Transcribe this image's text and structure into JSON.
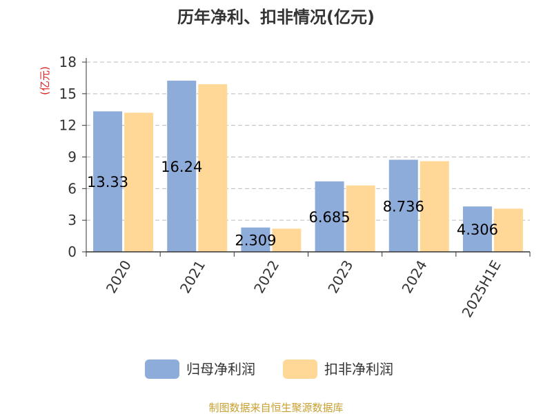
{
  "chart_data": {
    "type": "bar",
    "title": "历年净利、扣非情况(亿元)",
    "ylabel": "(亿元)",
    "xlabel": "",
    "categories": [
      "2020",
      "2021",
      "2022",
      "2023",
      "2024",
      "2025H1E"
    ],
    "series": [
      {
        "name": "归母净利润",
        "values": [
          13.33,
          16.24,
          2.309,
          6.685,
          8.736,
          4.306
        ],
        "color": "#8eacda"
      },
      {
        "name": "扣非净利润",
        "values": [
          13.2,
          15.9,
          2.2,
          6.3,
          8.6,
          4.1
        ],
        "color": "#ffd897"
      }
    ],
    "data_labels": [
      "13.33",
      "16.24",
      "2.309",
      "6.685",
      "8.736",
      "4.306"
    ],
    "ylim": [
      0,
      18
    ],
    "yticks": [
      0,
      3,
      6,
      9,
      12,
      15,
      18
    ],
    "grid": true,
    "legend_position": "bottom",
    "source": "制图数据来自恒生聚源数据库"
  }
}
